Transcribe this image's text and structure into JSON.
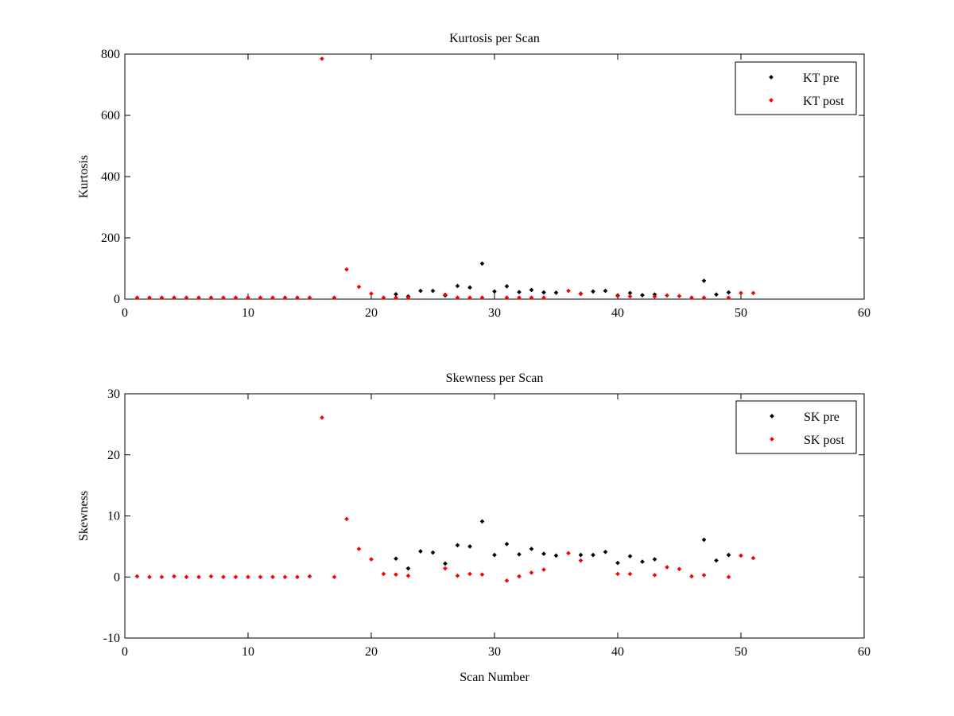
{
  "chart_data": [
    {
      "type": "scatter",
      "title": "Kurtosis per Scan",
      "xlabel": "",
      "ylabel": "Kurtosis",
      "xlim": [
        0,
        60
      ],
      "ylim": [
        0,
        800
      ],
      "xticks": [
        0,
        10,
        20,
        30,
        40,
        50,
        60
      ],
      "yticks": [
        0,
        200,
        400,
        600,
        800
      ],
      "xtick_labels": [
        "0",
        "10",
        "20",
        "30",
        "40",
        "50",
        "60"
      ],
      "ytick_labels": [
        "0",
        "200",
        "400",
        "600",
        "800"
      ],
      "grid": false,
      "legend": "top-right",
      "series": [
        {
          "name": "KT pre",
          "color": "#000000",
          "x": [
            22,
            23,
            24,
            25,
            26,
            27,
            28,
            29,
            30,
            31,
            32,
            33,
            34,
            35,
            37,
            38,
            39,
            40,
            41,
            42,
            43,
            47,
            48,
            49
          ],
          "y": [
            16,
            9,
            27,
            27,
            12,
            43,
            38,
            116,
            25,
            42,
            23,
            30,
            22,
            21,
            18,
            25,
            27,
            12,
            20,
            13,
            15,
            60,
            15,
            22
          ]
        },
        {
          "name": "KT post",
          "color": "#ff0000",
          "x": [
            1,
            2,
            3,
            4,
            5,
            6,
            7,
            8,
            9,
            10,
            11,
            12,
            13,
            14,
            15,
            16,
            17,
            18,
            19,
            20,
            21,
            22,
            23,
            26,
            27,
            28,
            29,
            31,
            32,
            33,
            34,
            36,
            37,
            40,
            41,
            43,
            44,
            45,
            46,
            47,
            49,
            50,
            51
          ],
          "y": [
            5,
            5,
            5,
            5,
            5,
            5,
            5,
            5,
            5,
            5,
            5,
            5,
            5,
            5,
            5,
            785,
            5,
            97,
            40,
            18,
            5,
            5,
            5,
            15,
            5,
            5,
            5,
            5,
            5,
            5,
            5,
            27,
            17,
            10,
            9,
            8,
            12,
            10,
            5,
            5,
            5,
            20,
            20
          ]
        }
      ]
    },
    {
      "type": "scatter",
      "title": "Skewness per Scan",
      "xlabel": "Scan Number",
      "ylabel": "Skewness",
      "xlim": [
        0,
        60
      ],
      "ylim": [
        -10,
        30
      ],
      "xticks": [
        0,
        10,
        20,
        30,
        40,
        50,
        60
      ],
      "yticks": [
        -10,
        0,
        10,
        20,
        30
      ],
      "xtick_labels": [
        "0",
        "10",
        "20",
        "30",
        "40",
        "50",
        "60"
      ],
      "ytick_labels": [
        "-10",
        "0",
        "10",
        "20",
        "30"
      ],
      "grid": false,
      "legend": "top-right",
      "series": [
        {
          "name": "SK pre",
          "color": "#000000",
          "x": [
            22,
            23,
            24,
            25,
            26,
            27,
            28,
            29,
            30,
            31,
            32,
            33,
            34,
            35,
            37,
            38,
            39,
            40,
            41,
            42,
            43,
            47,
            48,
            49
          ],
          "y": [
            3.0,
            1.4,
            4.2,
            4.0,
            2.2,
            5.2,
            5.0,
            9.1,
            3.6,
            5.4,
            3.7,
            4.6,
            3.8,
            3.5,
            3.6,
            3.6,
            4.1,
            2.3,
            3.4,
            2.5,
            2.9,
            6.1,
            2.7,
            3.6
          ]
        },
        {
          "name": "SK post",
          "color": "#ff0000",
          "x": [
            1,
            2,
            3,
            4,
            5,
            6,
            7,
            8,
            9,
            10,
            11,
            12,
            13,
            14,
            15,
            16,
            17,
            18,
            19,
            20,
            21,
            22,
            23,
            26,
            27,
            28,
            29,
            31,
            32,
            33,
            34,
            36,
            37,
            40,
            41,
            43,
            44,
            45,
            46,
            47,
            49,
            50,
            51
          ],
          "y": [
            0.1,
            0.0,
            0.0,
            0.1,
            0.0,
            0.0,
            0.1,
            0.0,
            0.0,
            0.0,
            0.0,
            0.0,
            0.0,
            0.0,
            0.1,
            26.1,
            0.0,
            9.5,
            4.6,
            2.9,
            0.5,
            0.4,
            0.2,
            1.4,
            0.2,
            0.5,
            0.4,
            -0.6,
            0.1,
            0.7,
            1.2,
            3.9,
            2.7,
            0.5,
            0.5,
            0.3,
            1.6,
            1.3,
            0.1,
            0.3,
            0.0,
            3.5,
            3.1
          ]
        }
      ]
    }
  ]
}
